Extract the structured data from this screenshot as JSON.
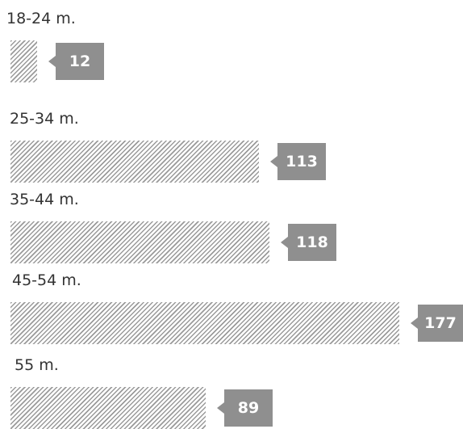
{
  "chart_data": {
    "type": "bar",
    "orientation": "horizontal",
    "categories": [
      "18-24 m.",
      "25-34 m.",
      "35-44 m.",
      "45-54 m.",
      "55 m."
    ],
    "values": [
      12,
      113,
      118,
      177,
      89
    ],
    "value_labels": [
      "12",
      "113",
      "118",
      "177",
      "89"
    ],
    "title": "",
    "xlabel": "",
    "ylabel": "",
    "xlim": [
      0,
      177
    ],
    "grid": false,
    "legend": "none"
  },
  "colors": {
    "hatch": "#9a9a9a",
    "badge": "#8f8f8f",
    "label_text": "#333333",
    "badge_text": "#ffffff"
  }
}
